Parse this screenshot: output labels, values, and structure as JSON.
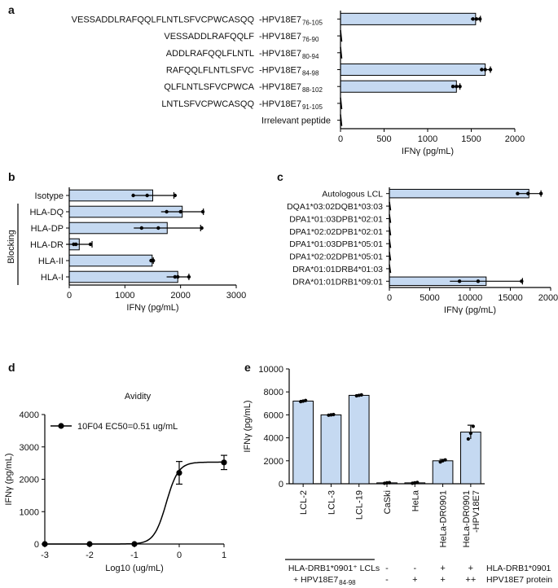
{
  "colors": {
    "bar": "#c5d9f1",
    "stroke": "#000000",
    "dot": "#000000"
  },
  "chart_data": [
    {
      "panel": "a",
      "type": "bar",
      "orientation": "horizontal",
      "categories": [
        {
          "seq": "VESSADDLRAFQQLFLNTLSFVCPWCASQQ",
          "name": "-HPV18E7",
          "sub": "76-105"
        },
        {
          "seq": "VESSADDLRAFQQLF",
          "name": "-HPV18E7",
          "sub": "76-90"
        },
        {
          "seq": "ADDLRAFQQLFLNTL",
          "name": "-HPV18E7",
          "sub": "80-94"
        },
        {
          "seq": "RAFQQLFLNTLSFVC",
          "name": "-HPV18E7",
          "sub": "84-98"
        },
        {
          "seq": "QLFLNTLSFVCPWCA",
          "name": "-HPV18E7",
          "sub": "88-102"
        },
        {
          "seq": "LNTLSFVCPWCASQQ",
          "name": "-HPV18E7",
          "sub": "91-105"
        },
        {
          "seq": "",
          "name": "Irrelevant peptide",
          "sub": ""
        }
      ],
      "values": [
        1550,
        0,
        0,
        1660,
        1330,
        0,
        0
      ],
      "errors": [
        55,
        0,
        0,
        60,
        40,
        0,
        0
      ],
      "points": [
        [
          1520,
          1560,
          1600
        ],
        [
          0,
          0,
          0
        ],
        [
          0,
          0,
          0
        ],
        [
          1620,
          1660,
          1720
        ],
        [
          1290,
          1330,
          1370
        ],
        [
          0,
          0,
          0
        ],
        [
          0,
          0,
          0
        ]
      ],
      "xlabel": "IFNγ (pg/mL)",
      "xlim": [
        0,
        2000
      ],
      "xticks": [
        0,
        500,
        1000,
        1500,
        2000
      ]
    },
    {
      "panel": "b",
      "type": "bar",
      "orientation": "horizontal",
      "categories": [
        "Isotype",
        "HLA-DQ",
        "HLA-DP",
        "HLA-DR",
        "HLA-II",
        "HLA-I"
      ],
      "group_label": "Blocking",
      "values": [
        1500,
        2030,
        1760,
        180,
        1490,
        1950
      ],
      "errors": [
        380,
        380,
        600,
        230,
        20,
        200
      ],
      "points": [
        [
          1150,
          1400,
          1900
        ],
        [
          1750,
          2000,
          2400
        ],
        [
          1300,
          1600,
          2380
        ],
        [
          80,
          120,
          380
        ],
        [
          1470,
          1490,
          1510
        ],
        [
          1900,
          1950,
          2150
        ]
      ],
      "xlabel": "IFNγ (pg/mL)",
      "xlim": [
        0,
        3000
      ],
      "xticks": [
        0,
        1000,
        2000,
        3000
      ]
    },
    {
      "panel": "c",
      "type": "bar",
      "orientation": "horizontal",
      "categories": [
        "Autologous LCL",
        "DQA1*03:02DQB1*03:03",
        "DPA1*01:03DPB1*02:01",
        "DPA1*02:02DPB1*02:01",
        "DPA1*01:03DPB1*05:01",
        "DPA1*02:02DPB1*05:01",
        "DRA*01:01DRB4*01:03",
        "DRA*01:01DRB1*09:01"
      ],
      "values": [
        17300,
        0,
        0,
        0,
        0,
        0,
        0,
        12000
      ],
      "errors": [
        1500,
        0,
        0,
        0,
        0,
        0,
        0,
        4500
      ],
      "points": [
        [
          15900,
          17200,
          18800
        ],
        [
          0,
          0,
          0
        ],
        [
          0,
          0,
          0
        ],
        [
          0,
          0,
          0
        ],
        [
          0,
          0,
          0
        ],
        [
          0,
          0,
          0
        ],
        [
          0,
          0,
          0
        ],
        [
          8700,
          11000,
          16400
        ]
      ],
      "xlabel": "IFNγ (pg/mL)",
      "xlim": [
        0,
        20000
      ],
      "xticks": [
        0,
        5000,
        10000,
        15000,
        20000
      ]
    },
    {
      "panel": "d",
      "type": "line",
      "title": "Avidity",
      "series": [
        {
          "name": "10F04 EC50=0.51 ug/mL",
          "x": [
            -3,
            -2,
            -1,
            0,
            1
          ],
          "y": [
            0,
            0,
            0,
            2200,
            2520
          ],
          "errors": [
            0,
            0,
            0,
            350,
            220
          ]
        }
      ],
      "xlabel": "Log10 (ug/mL)",
      "ylabel": "IFNγ (pg/mL)",
      "xlim": [
        -3,
        1
      ],
      "ylim": [
        0,
        4000
      ],
      "xticks": [
        -3,
        -2,
        -1,
        0,
        1
      ],
      "yticks": [
        0,
        1000,
        2000,
        3000,
        4000
      ],
      "fit": {
        "bottom": 0,
        "top": 2530,
        "ec50_log": -0.29,
        "hill": 3.2
      }
    },
    {
      "panel": "e",
      "type": "bar",
      "orientation": "vertical",
      "categories": [
        "LCL-2",
        "LCL-3",
        "LCL-19",
        "CaSki",
        "HeLa",
        "HeLa-DR0901",
        "HeLa-DR0901\n-HPV18E7"
      ],
      "values": [
        7200,
        6000,
        7700,
        80,
        80,
        2000,
        4500
      ],
      "errors": [
        60,
        50,
        50,
        40,
        60,
        120,
        600
      ],
      "points": [
        [
          7150,
          7200,
          7250
        ],
        [
          5970,
          6000,
          6030
        ],
        [
          7660,
          7700,
          7740
        ],
        [
          40,
          80,
          100
        ],
        [
          40,
          80,
          120
        ],
        [
          1900,
          2000,
          2080
        ],
        [
          3900,
          4400,
          5000
        ]
      ],
      "ylabel": "IFNγ (pg/mL)",
      "ylim": [
        0,
        10000
      ],
      "yticks": [
        0,
        2000,
        4000,
        6000,
        8000,
        10000
      ],
      "annotations": {
        "bracket_line1": "HLA-DRB1*0901⁺ LCLs",
        "bracket_line2": "+ HPV18E7",
        "bracket_sub": "84-98",
        "row1_label": "HLA-DRB1*0901",
        "row2_label": "HPV18E7 protein",
        "row1_signs": [
          "-",
          "-",
          "+",
          "+"
        ],
        "row2_signs": [
          "-",
          "+",
          "+",
          "++"
        ]
      }
    }
  ],
  "panels": {
    "a": "a",
    "b": "b",
    "c": "c",
    "d": "d",
    "e": "e"
  }
}
